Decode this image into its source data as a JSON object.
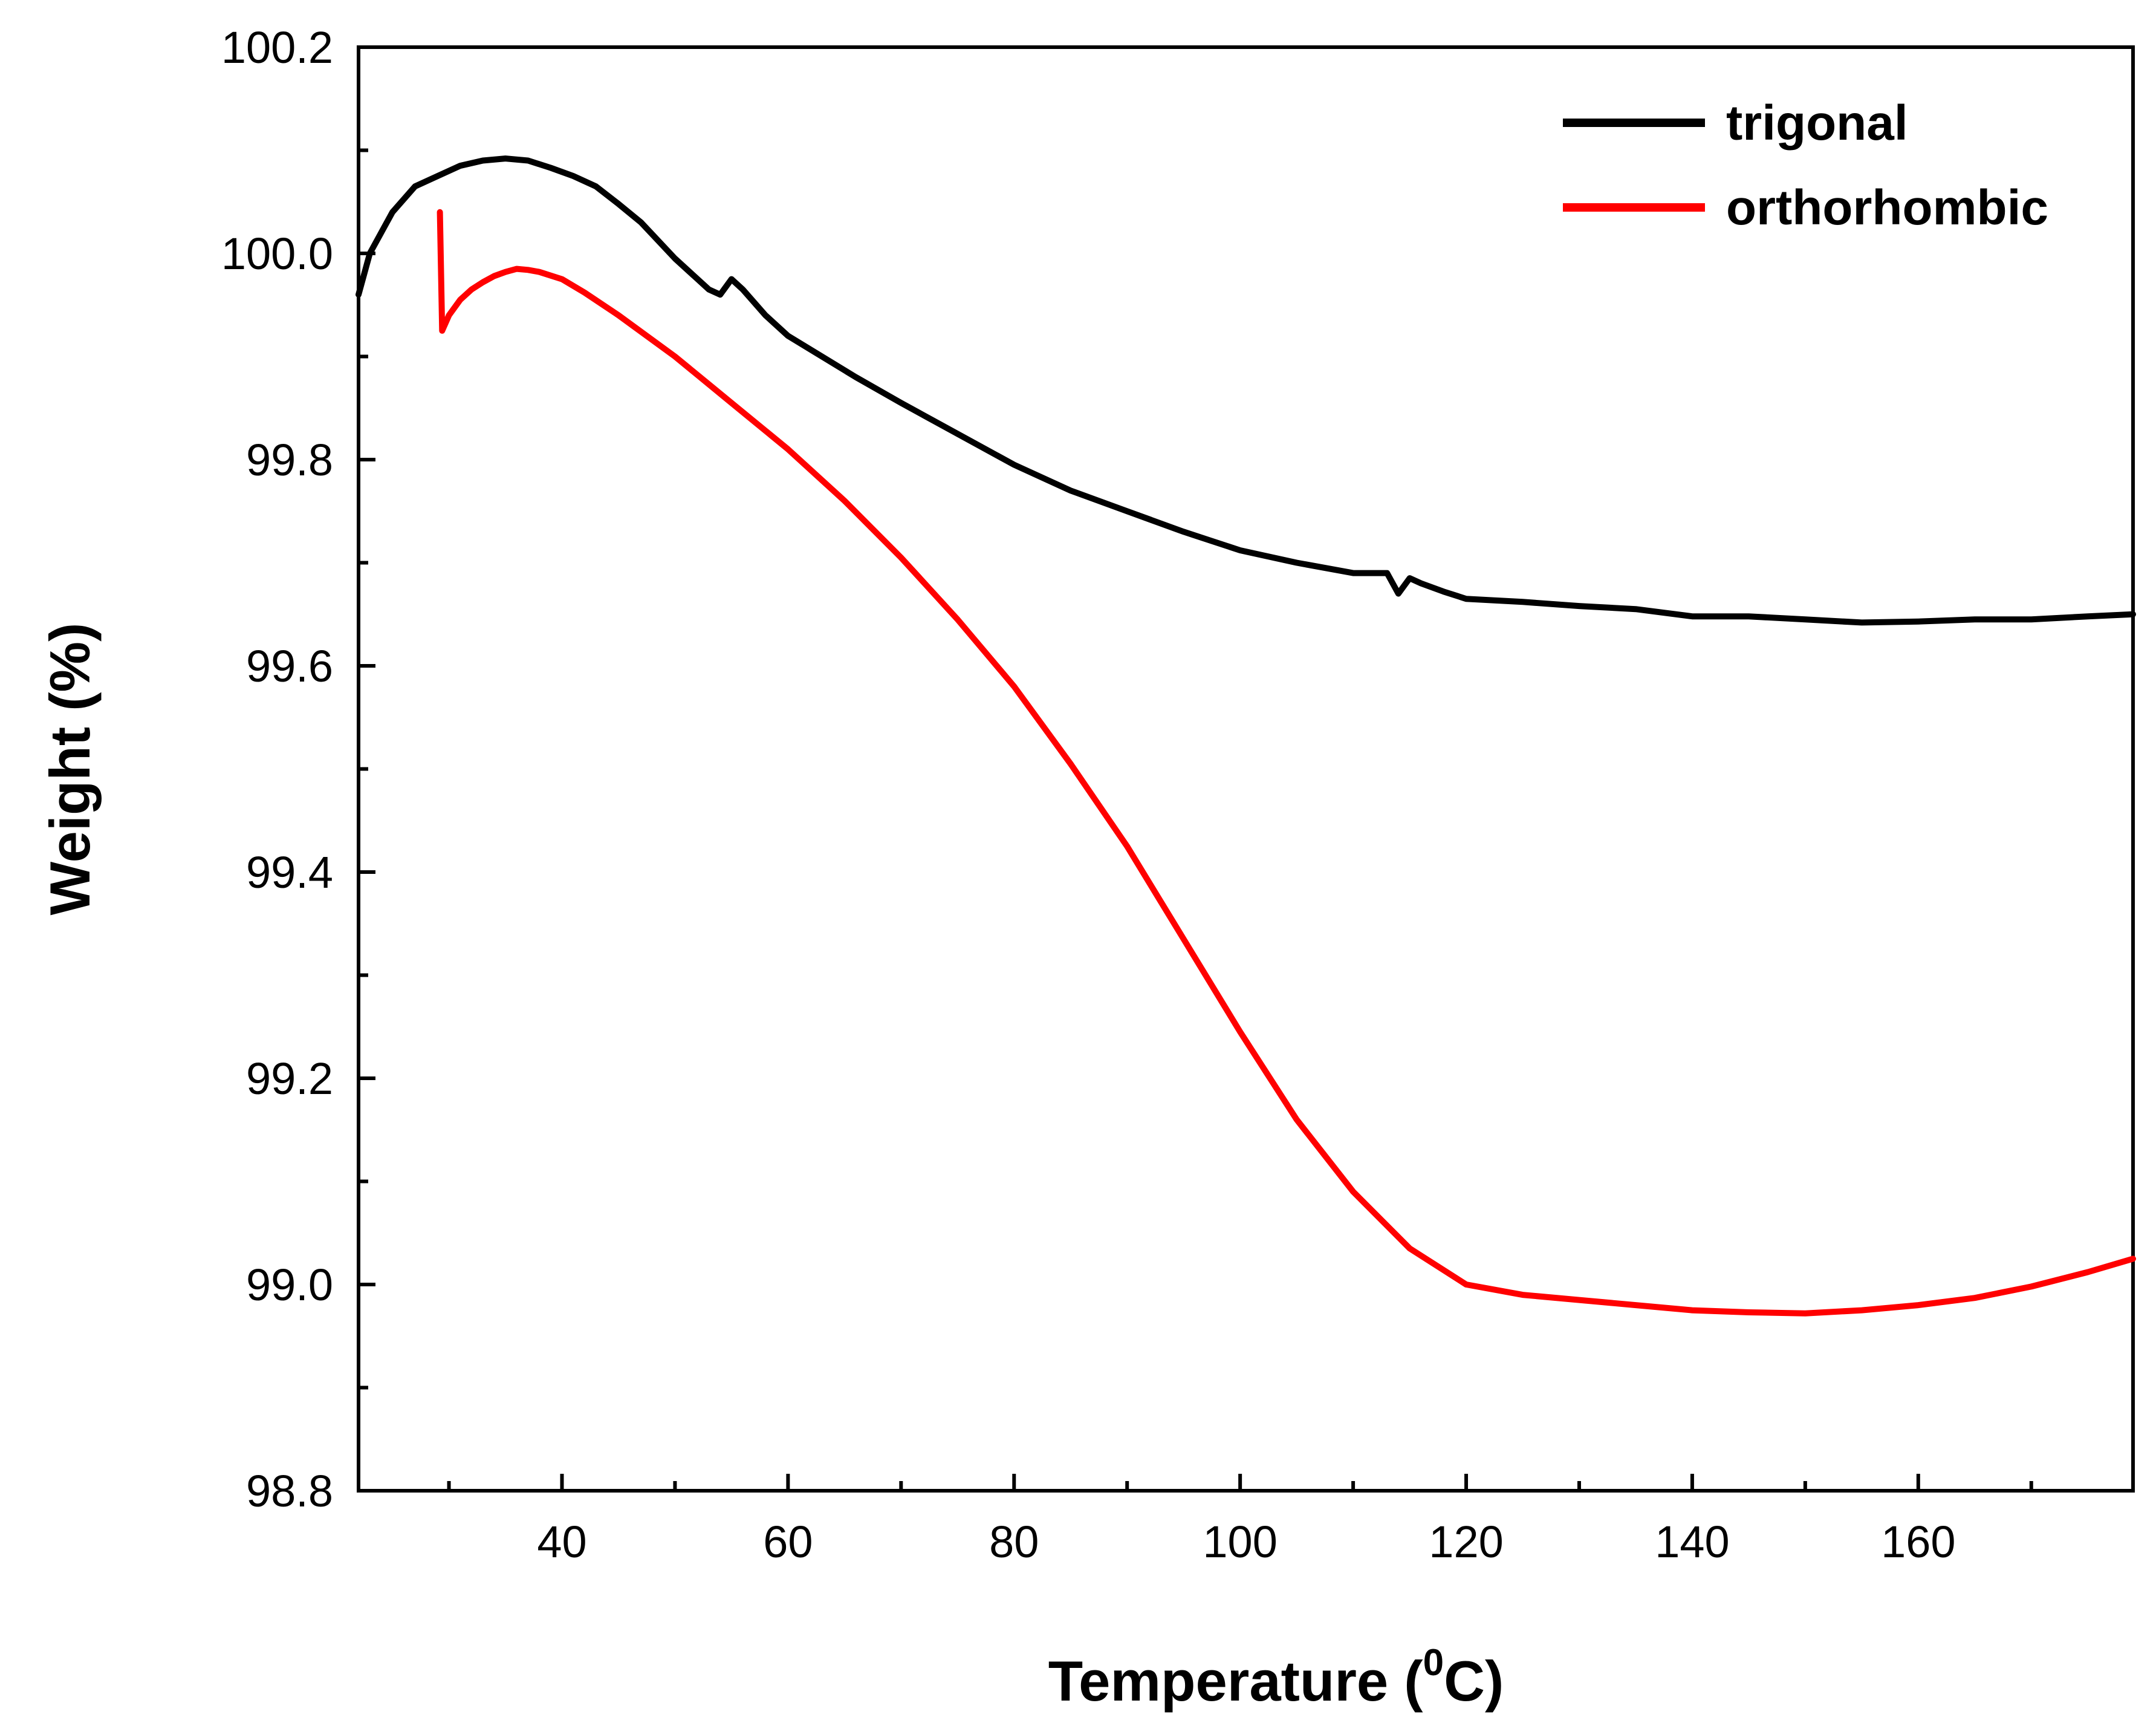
{
  "chart_data": {
    "type": "line",
    "title": "",
    "xlabel": "Temperature (",
    "xlabel_superscript": "0",
    "xlabel_suffix": "C)",
    "ylabel": "Weight (%)",
    "xlim": [
      22,
      179
    ],
    "ylim": [
      98.8,
      100.2
    ],
    "x_ticks": [
      40,
      60,
      80,
      100,
      120,
      140,
      160
    ],
    "x_tick_labels": [
      "40",
      "60",
      "80",
      "100",
      "120",
      "140",
      "160"
    ],
    "y_ticks": [
      98.8,
      99.0,
      99.2,
      99.4,
      99.6,
      99.8,
      100.0,
      100.2
    ],
    "y_tick_labels": [
      "98.8",
      "99.0",
      "99.2",
      "99.4",
      "99.6",
      "99.8",
      "100.0",
      "100.2"
    ],
    "grid": false,
    "legend_position": "top-right",
    "series": [
      {
        "name": "trigonal",
        "color": "#000000",
        "x": [
          22,
          23,
          25,
          27,
          29,
          31,
          33,
          35,
          37,
          39,
          41,
          43,
          45,
          47,
          50,
          53,
          54,
          55,
          56,
          58,
          60,
          63,
          66,
          70,
          75,
          80,
          85,
          90,
          95,
          100,
          105,
          110,
          113,
          114,
          115,
          116,
          118,
          120,
          125,
          130,
          135,
          140,
          145,
          150,
          155,
          160,
          165,
          170,
          175,
          179
        ],
        "y": [
          99.96,
          100.0,
          100.04,
          100.065,
          100.075,
          100.085,
          100.09,
          100.092,
          100.09,
          100.083,
          100.075,
          100.065,
          100.048,
          100.03,
          99.995,
          99.965,
          99.96,
          99.975,
          99.965,
          99.94,
          99.92,
          99.9,
          99.88,
          99.855,
          99.825,
          99.795,
          99.77,
          99.75,
          99.73,
          99.712,
          99.7,
          99.69,
          99.69,
          99.67,
          99.685,
          99.68,
          99.672,
          99.665,
          99.662,
          99.658,
          99.655,
          99.648,
          99.648,
          99.645,
          99.642,
          99.643,
          99.645,
          99.645,
          99.648,
          99.65
        ]
      },
      {
        "name": "orthorhombic",
        "color": "#ff0000",
        "x": [
          29.2,
          29.4,
          30,
          31,
          32,
          33,
          34,
          35,
          36,
          37,
          38,
          40,
          42,
          45,
          50,
          55,
          60,
          65,
          70,
          75,
          80,
          85,
          90,
          95,
          100,
          105,
          110,
          115,
          120,
          125,
          130,
          135,
          140,
          145,
          150,
          155,
          160,
          165,
          170,
          175,
          179
        ],
        "y": [
          100.04,
          99.925,
          99.94,
          99.955,
          99.965,
          99.972,
          99.978,
          99.982,
          99.985,
          99.984,
          99.982,
          99.975,
          99.962,
          99.94,
          99.9,
          99.855,
          99.81,
          99.76,
          99.705,
          99.645,
          99.58,
          99.505,
          99.425,
          99.335,
          99.245,
          99.16,
          99.09,
          99.035,
          99.0,
          98.99,
          98.985,
          98.98,
          98.975,
          98.973,
          98.972,
          98.975,
          98.98,
          98.987,
          98.998,
          99.012,
          99.025
        ]
      }
    ]
  }
}
